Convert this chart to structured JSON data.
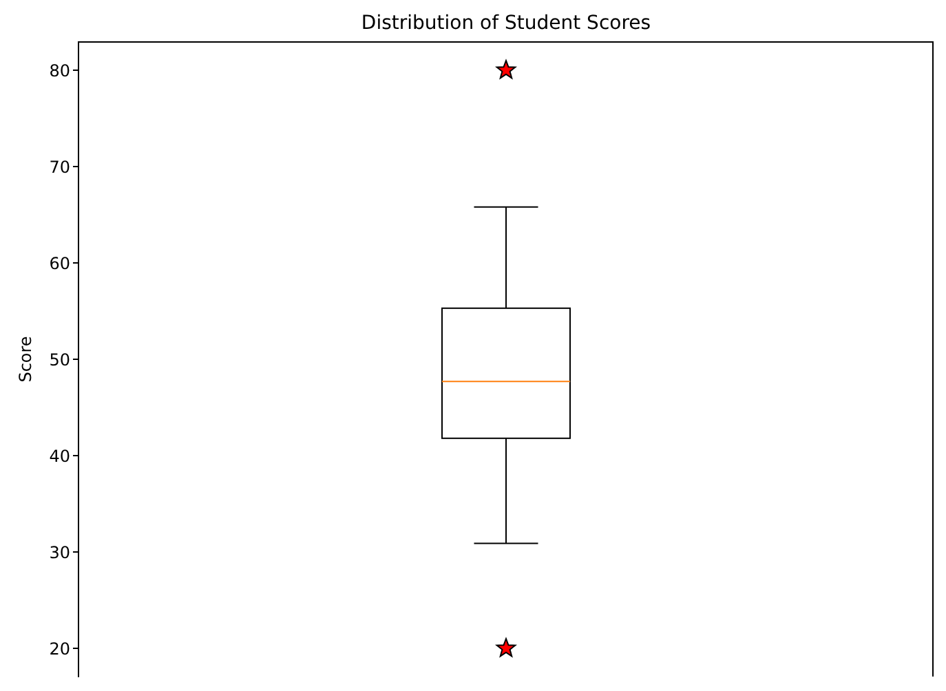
{
  "chart_data": {
    "type": "box",
    "title": "Distribution of Student Scores",
    "ylabel": "Score",
    "categories": [
      null
    ],
    "boxes": [
      {
        "low": 30.9,
        "q1": 41.8,
        "median": 47.7,
        "q3": 55.3,
        "high": 65.8,
        "outliers": [
          80,
          20
        ]
      }
    ],
    "ylim": [
      17,
      83
    ],
    "yticks": [
      20,
      30,
      40,
      50,
      60,
      70,
      80
    ],
    "tick_labels": "y",
    "grid": false,
    "marker": "star"
  }
}
